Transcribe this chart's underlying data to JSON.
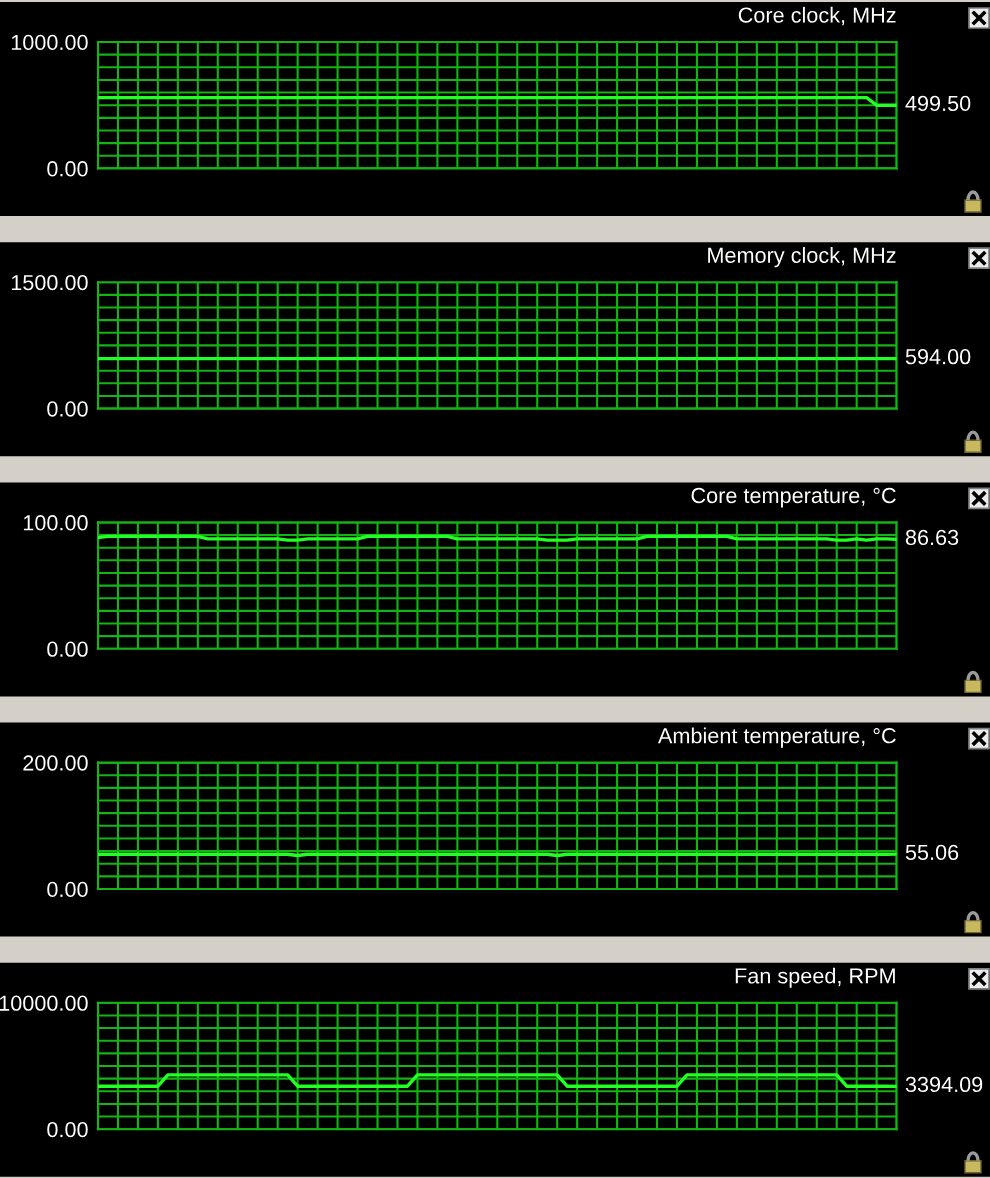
{
  "chart_data": [
    {
      "type": "line",
      "title": "Core clock, MHz",
      "color": "#22ff22",
      "grid": true,
      "ylim": [
        0,
        1000
      ],
      "yticks": [
        {
          "value": 0,
          "label": "0.00"
        },
        {
          "value": 100,
          "label": null
        },
        {
          "value": 200,
          "label": null
        },
        {
          "value": 300,
          "label": null
        },
        {
          "value": 400,
          "label": null
        },
        {
          "value": 500,
          "label": null
        },
        {
          "value": 600,
          "label": null
        },
        {
          "value": 700,
          "label": null
        },
        {
          "value": 800,
          "label": null
        },
        {
          "value": 900,
          "label": null
        },
        {
          "value": 1000,
          "label": "1000.00"
        }
      ],
      "categories": [
        null,
        null,
        null,
        null,
        null,
        null,
        null,
        null,
        null,
        null,
        null,
        null,
        null,
        null,
        null,
        null,
        null,
        null,
        null,
        null,
        null,
        null,
        null,
        null,
        null,
        null,
        null,
        null,
        null,
        null,
        null,
        null,
        null,
        null,
        null,
        null,
        null,
        null,
        null,
        null,
        null,
        null,
        null,
        null,
        null,
        null,
        null,
        null,
        null,
        null,
        null,
        null,
        null,
        null,
        null,
        null,
        null,
        null,
        null,
        null,
        null,
        null,
        null,
        null,
        null,
        null,
        null,
        null,
        null,
        null,
        null,
        null,
        null,
        null,
        null,
        null,
        null,
        null,
        null,
        null,
        null
      ],
      "values": [
        560,
        560,
        560,
        560,
        560,
        560,
        560,
        560,
        560,
        560,
        560,
        560,
        560,
        560,
        560,
        560,
        560,
        560,
        560,
        560,
        560,
        560,
        560,
        560,
        560,
        560,
        560,
        560,
        560,
        560,
        560,
        560,
        560,
        560,
        560,
        560,
        560,
        560,
        560,
        560,
        560,
        560,
        560,
        560,
        560,
        560,
        560,
        560,
        560,
        560,
        560,
        560,
        560,
        560,
        560,
        560,
        560,
        560,
        560,
        560,
        560,
        560,
        560,
        560,
        560,
        560,
        560,
        560,
        560,
        560,
        560,
        560,
        560,
        560,
        560,
        560,
        560,
        560,
        499.5,
        499.5,
        499.5
      ],
      "value_labels": [
        null,
        null,
        null,
        null,
        null,
        null,
        null,
        null,
        null,
        null,
        null,
        null,
        null,
        null,
        null,
        null,
        null,
        null,
        null,
        null,
        null,
        null,
        null,
        null,
        null,
        null,
        null,
        null,
        null,
        null,
        null,
        null,
        null,
        null,
        null,
        null,
        null,
        null,
        null,
        null,
        null,
        null,
        null,
        null,
        null,
        null,
        null,
        null,
        null,
        null,
        null,
        null,
        null,
        null,
        null,
        null,
        null,
        null,
        null,
        null,
        null,
        null,
        null,
        null,
        null,
        null,
        null,
        null,
        null,
        null,
        null,
        null,
        null,
        null,
        null,
        null,
        null,
        null,
        null,
        null,
        "499.50"
      ]
    },
    {
      "type": "line",
      "title": "Memory clock, MHz",
      "color": "#22ff22",
      "grid": true,
      "ylim": [
        0,
        1500
      ],
      "yticks": [
        {
          "value": 0,
          "label": "0.00"
        },
        {
          "value": 150,
          "label": null
        },
        {
          "value": 300,
          "label": null
        },
        {
          "value": 450,
          "label": null
        },
        {
          "value": 750,
          "label": null
        },
        {
          "value": 900,
          "label": null
        },
        {
          "value": 1050,
          "label": null
        },
        {
          "value": 1200,
          "label": null
        },
        {
          "value": 1350,
          "label": null
        },
        {
          "value": 1500,
          "label": "1500.00"
        }
      ],
      "categories": [
        null,
        null,
        null,
        null,
        null,
        null,
        null,
        null,
        null,
        null,
        null,
        null,
        null,
        null,
        null,
        null,
        null,
        null,
        null,
        null,
        null,
        null,
        null,
        null,
        null,
        null,
        null,
        null,
        null,
        null,
        null,
        null,
        null,
        null,
        null,
        null,
        null,
        null,
        null,
        null,
        null,
        null,
        null,
        null,
        null,
        null,
        null,
        null,
        null,
        null,
        null,
        null,
        null,
        null,
        null,
        null,
        null,
        null,
        null,
        null,
        null,
        null,
        null,
        null,
        null,
        null,
        null,
        null,
        null,
        null,
        null,
        null,
        null,
        null,
        null,
        null,
        null,
        null,
        null,
        null,
        null
      ],
      "values": [
        594,
        594,
        594,
        594,
        594,
        594,
        594,
        594,
        594,
        594,
        594,
        594,
        594,
        594,
        594,
        594,
        594,
        594,
        594,
        594,
        594,
        594,
        594,
        594,
        594,
        594,
        594,
        594,
        594,
        594,
        594,
        594,
        594,
        594,
        594,
        594,
        594,
        594,
        594,
        594,
        594,
        594,
        594,
        594,
        594,
        594,
        594,
        594,
        594,
        594,
        594,
        594,
        594,
        594,
        594,
        594,
        594,
        594,
        594,
        594,
        594,
        594,
        594,
        594,
        594,
        594,
        594,
        594,
        594,
        594,
        594,
        594,
        594,
        594,
        594,
        594,
        594,
        594,
        594,
        594,
        594
      ],
      "value_labels": [
        null,
        null,
        null,
        null,
        null,
        null,
        null,
        null,
        null,
        null,
        null,
        null,
        null,
        null,
        null,
        null,
        null,
        null,
        null,
        null,
        null,
        null,
        null,
        null,
        null,
        null,
        null,
        null,
        null,
        null,
        null,
        null,
        null,
        null,
        null,
        null,
        null,
        null,
        null,
        null,
        null,
        null,
        null,
        null,
        null,
        null,
        null,
        null,
        null,
        null,
        null,
        null,
        null,
        null,
        null,
        null,
        null,
        null,
        null,
        null,
        null,
        null,
        null,
        null,
        null,
        null,
        null,
        null,
        null,
        null,
        null,
        null,
        null,
        null,
        null,
        null,
        null,
        null,
        null,
        null,
        "594.00"
      ]
    },
    {
      "type": "line",
      "title": "Core temperature, °C",
      "color": "#22ff22",
      "grid": true,
      "ylim": [
        0,
        100
      ],
      "yticks": [
        {
          "value": 0,
          "label": "0.00"
        },
        {
          "value": 10,
          "label": null
        },
        {
          "value": 20,
          "label": null
        },
        {
          "value": 30,
          "label": null
        },
        {
          "value": 40,
          "label": null
        },
        {
          "value": 50,
          "label": null
        },
        {
          "value": 60,
          "label": null
        },
        {
          "value": 70,
          "label": null
        },
        {
          "value": 80,
          "label": null
        },
        {
          "value": 90,
          "label": null
        },
        {
          "value": 100,
          "label": "100.00"
        }
      ],
      "categories": [
        null,
        null,
        null,
        null,
        null,
        null,
        null,
        null,
        null,
        null,
        null,
        null,
        null,
        null,
        null,
        null,
        null,
        null,
        null,
        null,
        null,
        null,
        null,
        null,
        null,
        null,
        null,
        null,
        null,
        null,
        null,
        null,
        null,
        null,
        null,
        null,
        null,
        null,
        null,
        null,
        null,
        null,
        null,
        null,
        null,
        null,
        null,
        null,
        null,
        null,
        null,
        null,
        null,
        null,
        null,
        null,
        null,
        null,
        null,
        null,
        null,
        null,
        null,
        null,
        null,
        null,
        null,
        null,
        null,
        null,
        null,
        null,
        null,
        null,
        null,
        null,
        null,
        null,
        null,
        null,
        null
      ],
      "values": [
        88,
        89,
        89,
        89,
        89,
        89,
        89,
        89,
        89,
        89,
        89,
        87,
        87,
        87,
        87,
        87,
        87,
        87,
        87,
        86,
        86,
        87,
        87,
        87,
        87,
        87,
        87,
        89,
        89,
        89,
        89,
        89,
        89,
        89,
        89,
        89,
        87,
        87,
        87,
        87,
        87,
        87,
        87,
        87,
        87,
        86,
        86,
        86,
        87,
        87,
        87,
        87,
        87,
        87,
        87,
        89,
        89,
        89,
        89,
        89,
        89,
        89,
        89,
        89,
        87,
        87,
        87,
        87,
        87,
        87,
        87,
        87,
        87,
        87,
        86,
        86,
        87,
        86,
        87,
        87,
        86.63
      ],
      "value_labels": [
        null,
        null,
        null,
        null,
        null,
        null,
        null,
        null,
        null,
        null,
        null,
        null,
        null,
        null,
        null,
        null,
        null,
        null,
        null,
        null,
        null,
        null,
        null,
        null,
        null,
        null,
        null,
        null,
        null,
        null,
        null,
        null,
        null,
        null,
        null,
        null,
        null,
        null,
        null,
        null,
        null,
        null,
        null,
        null,
        null,
        null,
        null,
        null,
        null,
        null,
        null,
        null,
        null,
        null,
        null,
        null,
        null,
        null,
        null,
        null,
        null,
        null,
        null,
        null,
        null,
        null,
        null,
        null,
        null,
        null,
        null,
        null,
        null,
        null,
        null,
        null,
        null,
        null,
        null,
        null,
        "86.63"
      ]
    },
    {
      "type": "line",
      "title": "Ambient temperature, °C",
      "color": "#22ff22",
      "grid": true,
      "ylim": [
        0,
        200
      ],
      "yticks": [
        {
          "value": 0,
          "label": "0.00"
        },
        {
          "value": 20,
          "label": null
        },
        {
          "value": 40,
          "label": null
        },
        {
          "value": 60,
          "label": null
        },
        {
          "value": 80,
          "label": null
        },
        {
          "value": 100,
          "label": null
        },
        {
          "value": 120,
          "label": null
        },
        {
          "value": 140,
          "label": null
        },
        {
          "value": 160,
          "label": null
        },
        {
          "value": 180,
          "label": null
        },
        {
          "value": 200,
          "label": "200.00"
        }
      ],
      "categories": [
        null,
        null,
        null,
        null,
        null,
        null,
        null,
        null,
        null,
        null,
        null,
        null,
        null,
        null,
        null,
        null,
        null,
        null,
        null,
        null,
        null,
        null,
        null,
        null,
        null,
        null,
        null,
        null,
        null,
        null,
        null,
        null,
        null,
        null,
        null,
        null,
        null,
        null,
        null,
        null,
        null,
        null,
        null,
        null,
        null,
        null,
        null,
        null,
        null,
        null,
        null,
        null,
        null,
        null,
        null,
        null,
        null,
        null,
        null,
        null,
        null,
        null,
        null,
        null,
        null,
        null,
        null,
        null,
        null,
        null,
        null,
        null,
        null,
        null,
        null,
        null,
        null,
        null,
        null,
        null,
        null
      ],
      "values": [
        55,
        55,
        55,
        55,
        55,
        55,
        55,
        55,
        55,
        55,
        55,
        55,
        55,
        55,
        55,
        55,
        55,
        55,
        55,
        55,
        53,
        55,
        55,
        55,
        55,
        55,
        55,
        55,
        55,
        55,
        55,
        55,
        55,
        55,
        55,
        55,
        55,
        55,
        55,
        55,
        55,
        55,
        55,
        55,
        55,
        55,
        53,
        55,
        55,
        55,
        55,
        55,
        55,
        55,
        55,
        55,
        55,
        55,
        55,
        55,
        55,
        55,
        55,
        55,
        55,
        55,
        55,
        55,
        55,
        55,
        55,
        55,
        55,
        55,
        55,
        55,
        55,
        55,
        55,
        55,
        55.06
      ],
      "value_labels": [
        null,
        null,
        null,
        null,
        null,
        null,
        null,
        null,
        null,
        null,
        null,
        null,
        null,
        null,
        null,
        null,
        null,
        null,
        null,
        null,
        null,
        null,
        null,
        null,
        null,
        null,
        null,
        null,
        null,
        null,
        null,
        null,
        null,
        null,
        null,
        null,
        null,
        null,
        null,
        null,
        null,
        null,
        null,
        null,
        null,
        null,
        null,
        null,
        null,
        null,
        null,
        null,
        null,
        null,
        null,
        null,
        null,
        null,
        null,
        null,
        null,
        null,
        null,
        null,
        null,
        null,
        null,
        null,
        null,
        null,
        null,
        null,
        null,
        null,
        null,
        null,
        null,
        null,
        null,
        null,
        "55.06"
      ]
    },
    {
      "type": "line",
      "title": "Fan speed, RPM",
      "color": "#22ff22",
      "grid": true,
      "ylim": [
        0,
        10000
      ],
      "yticks": [
        {
          "value": 0,
          "label": "0.00"
        },
        {
          "value": 1000,
          "label": null
        },
        {
          "value": 2000,
          "label": null
        },
        {
          "value": 3000,
          "label": null
        },
        {
          "value": 4000,
          "label": null
        },
        {
          "value": 5000,
          "label": null
        },
        {
          "value": 6000,
          "label": null
        },
        {
          "value": 7000,
          "label": null
        },
        {
          "value": 8000,
          "label": null
        },
        {
          "value": 9000,
          "label": null
        },
        {
          "value": 10000,
          "label": "10000.00"
        }
      ],
      "categories": [
        null,
        null,
        null,
        null,
        null,
        null,
        null,
        null,
        null,
        null,
        null,
        null,
        null,
        null,
        null,
        null,
        null,
        null,
        null,
        null,
        null,
        null,
        null,
        null,
        null,
        null,
        null,
        null,
        null,
        null,
        null,
        null,
        null,
        null,
        null,
        null,
        null,
        null,
        null,
        null,
        null,
        null,
        null,
        null,
        null,
        null,
        null,
        null,
        null,
        null,
        null,
        null,
        null,
        null,
        null,
        null,
        null,
        null,
        null,
        null,
        null,
        null,
        null,
        null,
        null,
        null,
        null,
        null,
        null,
        null,
        null,
        null,
        null,
        null,
        null,
        null,
        null,
        null,
        null,
        null,
        null
      ],
      "values": [
        3400,
        3400,
        3400,
        3400,
        3400,
        3400,
        3400,
        4300,
        4300,
        4300,
        4300,
        4300,
        4300,
        4300,
        4300,
        4300,
        4300,
        4300,
        4300,
        4300,
        3400,
        3400,
        3400,
        3400,
        3400,
        3400,
        3400,
        3400,
        3400,
        3400,
        3400,
        3400,
        4300,
        4300,
        4300,
        4300,
        4300,
        4300,
        4300,
        4300,
        4300,
        4300,
        4300,
        4300,
        4300,
        4300,
        4300,
        3400,
        3400,
        3400,
        3400,
        3400,
        3400,
        3400,
        3400,
        3400,
        3400,
        3400,
        3400,
        4300,
        4300,
        4300,
        4300,
        4300,
        4300,
        4300,
        4300,
        4300,
        4300,
        4300,
        4300,
        4300,
        4300,
        4300,
        4300,
        3400,
        3400,
        3400,
        3400,
        3400,
        3394.09
      ],
      "value_labels": [
        null,
        null,
        null,
        null,
        null,
        null,
        null,
        null,
        null,
        null,
        null,
        null,
        null,
        null,
        null,
        null,
        null,
        null,
        null,
        null,
        null,
        null,
        null,
        null,
        null,
        null,
        null,
        null,
        null,
        null,
        null,
        null,
        null,
        null,
        null,
        null,
        null,
        null,
        null,
        null,
        null,
        null,
        null,
        null,
        null,
        null,
        null,
        null,
        null,
        null,
        null,
        null,
        null,
        null,
        null,
        null,
        null,
        null,
        null,
        null,
        null,
        null,
        null,
        null,
        null,
        null,
        null,
        null,
        null,
        null,
        null,
        null,
        null,
        null,
        null,
        null,
        null,
        null,
        null,
        null,
        "3394.09"
      ]
    }
  ]
}
